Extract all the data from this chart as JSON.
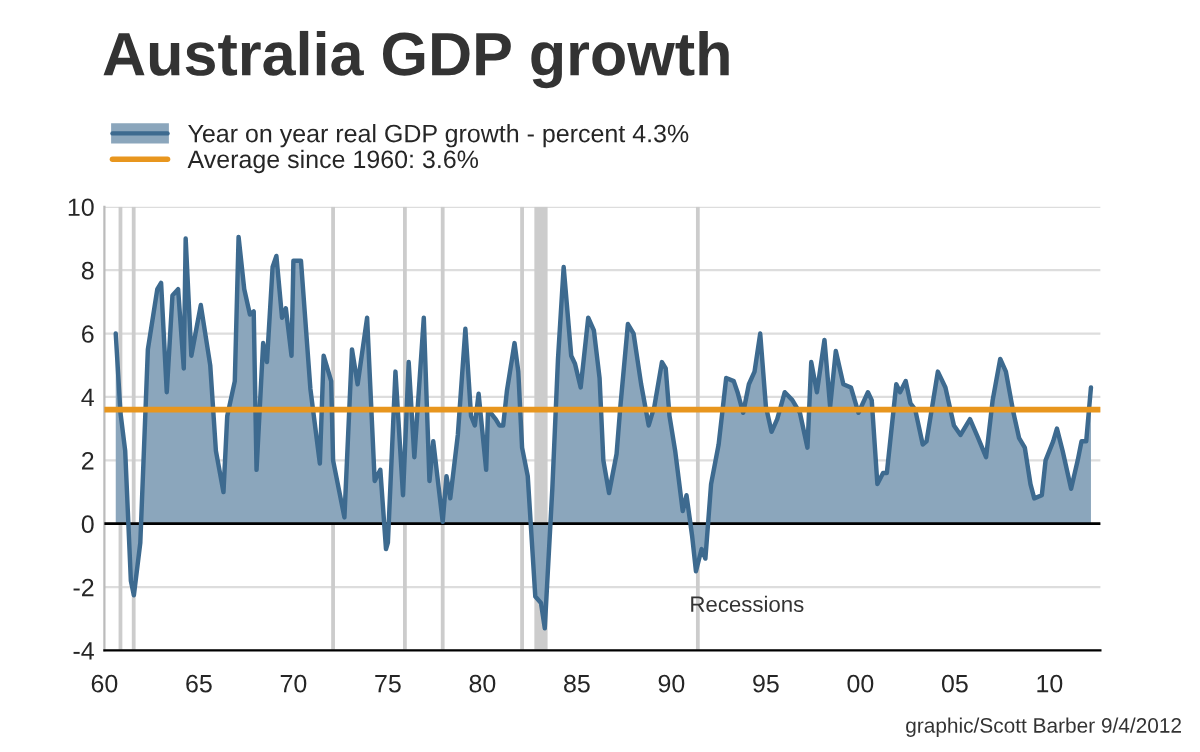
{
  "chart_data": {
    "type": "area",
    "title": "Australia GDP growth",
    "x": [
      1960.6,
      1960.85,
      1961.1,
      1961.4,
      1961.56,
      1961.9,
      1962.3,
      1962.8,
      1963.0,
      1963.3,
      1963.6,
      1963.9,
      1964.2,
      1964.3,
      1964.6,
      1965.1,
      1965.6,
      1965.9,
      1966.3,
      1966.5,
      1966.9,
      1967.1,
      1967.4,
      1967.7,
      1967.9,
      1968.05,
      1968.4,
      1968.6,
      1968.9,
      1969.1,
      1969.4,
      1969.6,
      1969.9,
      1970.0,
      1970.4,
      1970.9,
      1971.4,
      1971.6,
      1972.0,
      1972.1,
      1972.7,
      1973.1,
      1973.4,
      1973.9,
      1974.3,
      1974.6,
      1974.9,
      1975.0,
      1975.4,
      1975.8,
      1976.1,
      1976.4,
      1976.9,
      1977.2,
      1977.4,
      1977.9,
      1978.1,
      1978.3,
      1978.7,
      1979.1,
      1979.4,
      1979.6,
      1979.8,
      1980.2,
      1980.3,
      1980.7,
      1980.9,
      1981.1,
      1981.3,
      1981.7,
      1981.9,
      1982.1,
      1982.4,
      1982.8,
      1983.1,
      1983.3,
      1983.7,
      1984.0,
      1984.3,
      1984.7,
      1984.9,
      1985.2,
      1985.6,
      1985.9,
      1986.2,
      1986.4,
      1986.7,
      1987.1,
      1987.3,
      1987.7,
      1988.0,
      1988.4,
      1988.8,
      1989.1,
      1989.5,
      1989.7,
      1989.9,
      1990.2,
      1990.6,
      1990.8,
      1991.1,
      1991.3,
      1991.6,
      1991.8,
      1992.1,
      1992.5,
      1992.9,
      1993.3,
      1993.5,
      1993.8,
      1994.1,
      1994.4,
      1994.7,
      1995.0,
      1995.3,
      1995.6,
      1996.0,
      1996.4,
      1996.8,
      1997.2,
      1997.4,
      1997.7,
      1998.1,
      1998.4,
      1998.7,
      1999.1,
      1999.5,
      1999.9,
      2000.4,
      2000.6,
      2000.9,
      2001.2,
      2001.4,
      2001.9,
      2002.1,
      2002.4,
      2002.65,
      2002.9,
      2003.3,
      2003.5,
      2004.1,
      2004.5,
      2004.95,
      2005.3,
      2005.8,
      2006.2,
      2006.65,
      2007.0,
      2007.4,
      2007.7,
      2008.1,
      2008.4,
      2008.7,
      2009.0,
      2009.2,
      2009.6,
      2009.8,
      2010.2,
      2010.4,
      2010.7,
      2011.15,
      2011.5,
      2011.7,
      2011.95,
      2012.2
    ],
    "series": [
      {
        "name": "Year on year real GDP growth - percent 4.3%",
        "color": "#3d6a8f",
        "values": [
          6.0,
          3.5,
          2.3,
          -1.8,
          -2.26,
          -0.6,
          5.5,
          7.4,
          7.6,
          4.15,
          7.2,
          7.4,
          4.9,
          9.0,
          5.3,
          6.9,
          5.0,
          2.3,
          1.0,
          3.4,
          4.5,
          9.05,
          7.4,
          6.6,
          6.7,
          1.7,
          5.7,
          5.1,
          8.1,
          8.45,
          6.5,
          6.8,
          5.3,
          8.3,
          8.3,
          4.25,
          1.9,
          5.3,
          4.5,
          2.0,
          0.2,
          5.5,
          4.4,
          6.5,
          1.35,
          1.7,
          -0.8,
          -0.6,
          4.8,
          0.9,
          5.1,
          2.1,
          6.5,
          1.35,
          2.6,
          0.06,
          1.5,
          0.8,
          2.8,
          6.15,
          3.4,
          3.1,
          4.1,
          1.7,
          3.6,
          3.3,
          3.1,
          3.1,
          4.2,
          5.7,
          4.8,
          2.4,
          1.5,
          -2.3,
          -2.5,
          -3.3,
          1.1,
          5.2,
          8.1,
          5.3,
          5.05,
          4.3,
          6.5,
          6.1,
          4.6,
          2.0,
          0.97,
          2.2,
          3.7,
          6.3,
          6.0,
          4.4,
          3.1,
          3.7,
          5.1,
          4.9,
          3.4,
          2.3,
          0.4,
          0.9,
          -0.4,
          -1.5,
          -0.8,
          -1.1,
          1.25,
          2.5,
          4.6,
          4.5,
          4.15,
          3.5,
          4.4,
          4.8,
          6.0,
          3.7,
          2.9,
          3.3,
          4.15,
          3.9,
          3.5,
          2.4,
          5.1,
          4.15,
          5.8,
          3.7,
          5.45,
          4.4,
          4.3,
          3.5,
          4.15,
          3.9,
          1.25,
          1.6,
          1.6,
          4.4,
          4.15,
          4.5,
          3.8,
          3.6,
          2.5,
          2.6,
          4.8,
          4.3,
          3.1,
          2.8,
          3.3,
          2.75,
          2.1,
          3.9,
          5.2,
          4.8,
          3.5,
          2.7,
          2.4,
          1.25,
          0.8,
          0.9,
          2.0,
          2.6,
          3.0,
          2.3,
          1.1,
          2.0,
          2.6,
          2.6,
          4.3
        ]
      }
    ],
    "ref_lines": [
      {
        "axis": "y",
        "value": 3.6,
        "label": "Average since 1960: 3.6%",
        "color": "#e8961e"
      }
    ],
    "bands": [
      {
        "axis": "x",
        "from": 1960.75,
        "to": 1960.95,
        "color": "#cccccc"
      },
      {
        "axis": "x",
        "from": 1961.45,
        "to": 1961.65,
        "color": "#cccccc"
      },
      {
        "axis": "x",
        "from": 1972.0,
        "to": 1972.2,
        "color": "#cccccc"
      },
      {
        "axis": "x",
        "from": 1975.8,
        "to": 1976.0,
        "color": "#cccccc"
      },
      {
        "axis": "x",
        "from": 1977.8,
        "to": 1978.0,
        "color": "#cccccc"
      },
      {
        "axis": "x",
        "from": 1982.0,
        "to": 1982.2,
        "color": "#cccccc"
      },
      {
        "axis": "x",
        "from": 1982.75,
        "to": 1983.45,
        "color": "#cccccc"
      },
      {
        "axis": "x",
        "from": 1991.3,
        "to": 1991.5,
        "color": "#cccccc"
      }
    ],
    "annotations": [
      "Recessions",
      "graphic/Scott Barber 9/4/2012"
    ],
    "xlim": [
      1960,
      2012.7
    ],
    "ylim": [
      -4,
      10
    ],
    "xticks": [
      {
        "value": 1960,
        "label": "60"
      },
      {
        "value": 1965,
        "label": "65"
      },
      {
        "value": 1970,
        "label": "70"
      },
      {
        "value": 1975,
        "label": "75"
      },
      {
        "value": 1980,
        "label": "80"
      },
      {
        "value": 1985,
        "label": "85"
      },
      {
        "value": 1990,
        "label": "90"
      },
      {
        "value": 1995,
        "label": "95"
      },
      {
        "value": 2000,
        "label": "00"
      },
      {
        "value": 2005,
        "label": "05"
      },
      {
        "value": 2010,
        "label": "10"
      }
    ],
    "yticks": [
      -4,
      -2,
      0,
      2,
      4,
      6,
      8,
      10
    ],
    "grid": "y",
    "legend": "top left"
  }
}
